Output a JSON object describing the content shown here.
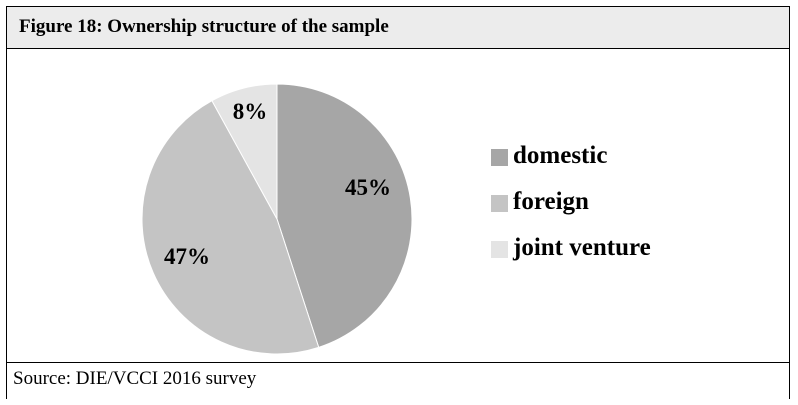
{
  "figure": {
    "title": "Figure 18: Ownership structure of the sample",
    "source": "Source:  DIE/VCCI 2016 survey"
  },
  "chart_data": {
    "type": "pie",
    "categories": [
      "domestic",
      "foreign",
      "joint venture"
    ],
    "values": [
      45,
      47,
      8
    ],
    "data_labels": [
      "45%",
      "47%",
      "8%"
    ],
    "colors": [
      "#a6a6a6",
      "#c4c4c4",
      "#e4e4e4"
    ],
    "start_angle_deg": 0,
    "direction": "clockwise",
    "legend_position": "right"
  }
}
